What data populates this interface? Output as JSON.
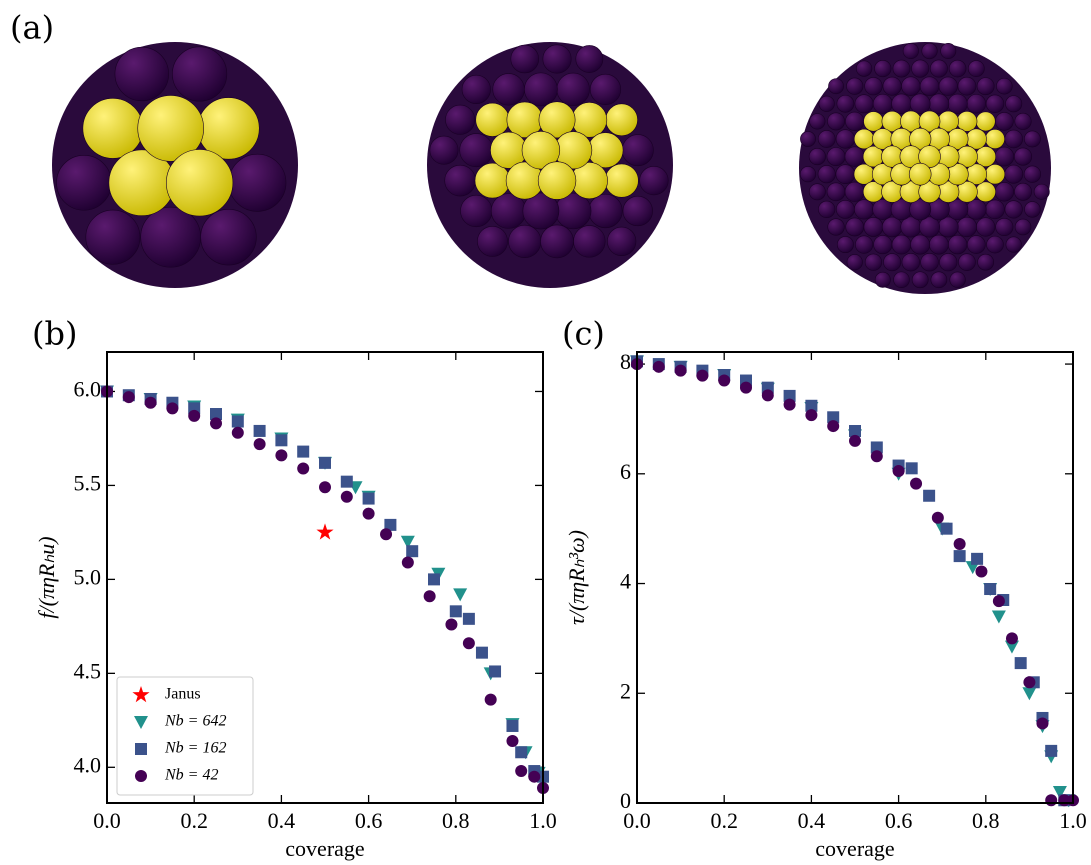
{
  "figure": {
    "panel_label": "(a)"
  },
  "chart_data": [
    {
      "type": "scatter",
      "panel_label": "(b)",
      "xlabel": "coverage",
      "ylabel": "f/(πηRₕu)",
      "xlim": [
        0,
        1
      ],
      "ylim": [
        3.81,
        6.21
      ],
      "xticks": [
        {
          "value": 0,
          "label": "0.0"
        },
        {
          "value": 0.2,
          "label": "0.2"
        },
        {
          "value": 0.4,
          "label": "0.4"
        },
        {
          "value": 0.6,
          "label": "0.6"
        },
        {
          "value": 0.8,
          "label": "0.8"
        },
        {
          "value": 1,
          "label": "1.0"
        }
      ],
      "yticks": [
        {
          "value": 4,
          "label": "4.0"
        },
        4.5,
        {
          "value": 5,
          "label": "5.0"
        },
        5.5,
        {
          "value": 6,
          "label": "6.0"
        }
      ],
      "legend": "lower left",
      "series": [
        {
          "name": "Janus",
          "color": "#ff0000",
          "marker": "star",
          "x": [
            0.5
          ],
          "values": [
            5.25
          ]
        },
        {
          "name": "Nb = 642",
          "color": "#21918c",
          "marker": "v",
          "x": [
            0,
            0.1,
            0.2,
            0.3,
            0.4,
            0.5,
            0.57,
            0.6,
            0.69,
            0.76,
            0.81,
            0.88,
            0.93,
            0.96,
            0.99
          ],
          "values": [
            6.0,
            5.96,
            5.92,
            5.85,
            5.75,
            5.62,
            5.49,
            5.44,
            5.2,
            5.03,
            4.92,
            4.5,
            4.23,
            4.08,
            3.97
          ]
        },
        {
          "name": "Nb = 162",
          "color": "#3b528b",
          "marker": "s",
          "x": [
            0,
            0.05,
            0.1,
            0.15,
            0.2,
            0.25,
            0.3,
            0.35,
            0.4,
            0.45,
            0.5,
            0.55,
            0.6,
            0.65,
            0.7,
            0.75,
            0.8,
            0.83,
            0.86,
            0.89,
            0.93,
            0.95,
            0.98,
            1.0
          ],
          "values": [
            6.0,
            5.98,
            5.96,
            5.94,
            5.91,
            5.88,
            5.84,
            5.79,
            5.74,
            5.68,
            5.62,
            5.52,
            5.43,
            5.29,
            5.15,
            5.0,
            4.83,
            4.79,
            4.61,
            4.51,
            4.22,
            4.08,
            3.98,
            3.95
          ]
        },
        {
          "name": "Nb = 42",
          "color": "#440154",
          "marker": "o",
          "x": [
            0,
            0.05,
            0.1,
            0.15,
            0.2,
            0.25,
            0.3,
            0.35,
            0.4,
            0.45,
            0.5,
            0.55,
            0.6,
            0.64,
            0.69,
            0.74,
            0.79,
            0.83,
            0.88,
            0.93,
            0.95,
            0.98,
            1.0
          ],
          "values": [
            6.0,
            5.97,
            5.94,
            5.91,
            5.87,
            5.83,
            5.78,
            5.72,
            5.66,
            5.59,
            5.49,
            5.44,
            5.35,
            5.24,
            5.09,
            4.91,
            4.76,
            4.66,
            4.36,
            4.14,
            3.98,
            3.95,
            3.89
          ]
        }
      ]
    },
    {
      "type": "scatter",
      "panel_label": "(c)",
      "xlabel": "coverage",
      "ylabel": "τ/(πηRₕ³ω)",
      "xlim": [
        0,
        1
      ],
      "ylim": [
        0,
        8.22
      ],
      "xticks": [
        {
          "value": 0,
          "label": "0.0"
        },
        {
          "value": 0.2,
          "label": "0.2"
        },
        {
          "value": 0.4,
          "label": "0.4"
        },
        {
          "value": 0.6,
          "label": "0.6"
        },
        {
          "value": 0.8,
          "label": "0.8"
        },
        {
          "value": 1,
          "label": "1.0"
        }
      ],
      "yticks": [
        0,
        2,
        4,
        6,
        8
      ],
      "series": [
        {
          "color": "#21918c",
          "marker": "v",
          "x": [
            0,
            0.1,
            0.2,
            0.3,
            0.4,
            0.5,
            0.6,
            0.7,
            0.77,
            0.81,
            0.83,
            0.86,
            0.9,
            0.93,
            0.95,
            0.97,
            0.99
          ],
          "values": [
            8.05,
            7.95,
            7.8,
            7.55,
            7.2,
            6.7,
            6.0,
            5.0,
            4.3,
            3.9,
            3.4,
            2.85,
            2.0,
            1.4,
            0.85,
            0.2,
            0.05
          ]
        },
        {
          "color": "#3b528b",
          "marker": "s",
          "x": [
            0,
            0.05,
            0.1,
            0.15,
            0.2,
            0.25,
            0.3,
            0.35,
            0.4,
            0.45,
            0.5,
            0.55,
            0.6,
            0.63,
            0.67,
            0.71,
            0.74,
            0.78,
            0.81,
            0.84,
            0.88,
            0.91,
            0.93,
            0.95,
            0.98
          ],
          "values": [
            8.05,
            8.0,
            7.95,
            7.88,
            7.8,
            7.7,
            7.57,
            7.42,
            7.24,
            7.03,
            6.78,
            6.48,
            6.15,
            6.1,
            5.6,
            5.0,
            4.5,
            4.45,
            3.9,
            3.7,
            2.55,
            2.2,
            1.55,
            0.95,
            0.05
          ]
        },
        {
          "color": "#440154",
          "marker": "o",
          "x": [
            0,
            0.05,
            0.1,
            0.15,
            0.2,
            0.25,
            0.3,
            0.35,
            0.4,
            0.45,
            0.5,
            0.55,
            0.6,
            0.64,
            0.69,
            0.74,
            0.79,
            0.83,
            0.86,
            0.9,
            0.93,
            0.95,
            0.98,
            1.0
          ],
          "values": [
            8.0,
            7.95,
            7.88,
            7.79,
            7.7,
            7.57,
            7.43,
            7.26,
            7.07,
            6.87,
            6.6,
            6.32,
            6.05,
            5.82,
            5.2,
            4.72,
            4.22,
            3.68,
            3.0,
            2.2,
            1.45,
            0.05,
            0.05,
            0.05
          ]
        }
      ]
    }
  ]
}
